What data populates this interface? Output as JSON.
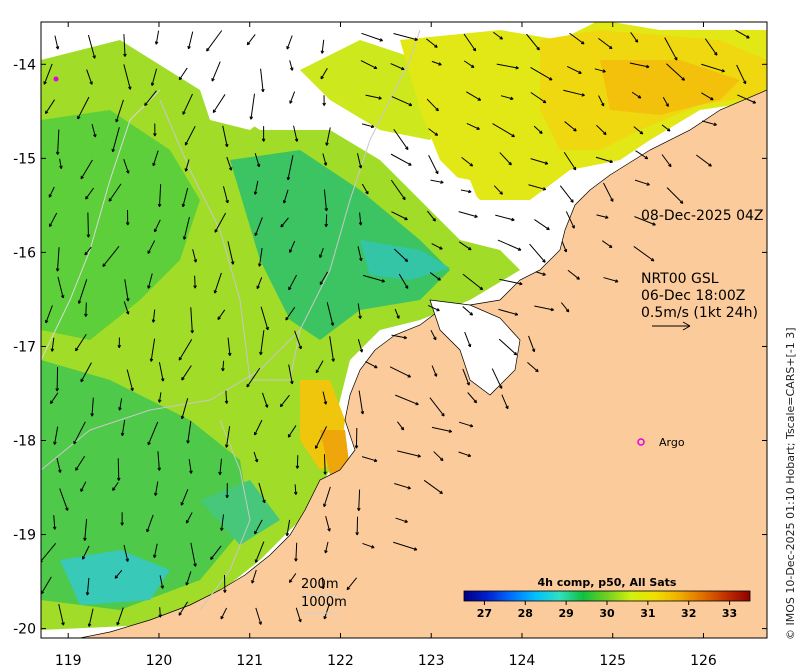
{
  "map": {
    "x_ticks": [
      "119",
      "120",
      "121",
      "122",
      "123",
      "124",
      "125",
      "126"
    ],
    "y_ticks": [
      "-14",
      "-15",
      "-16",
      "-17",
      "-18",
      "-19",
      "-20"
    ],
    "x_range": [
      118.7,
      126.7
    ],
    "y_range": [
      -20.1,
      -13.55
    ]
  },
  "annotations": {
    "time": "08-Dec-2025 04Z",
    "model_line1": "NRT00 GSL",
    "model_line2": "06-Dec 18:00Z",
    "scale_note": "0.5m/s (1kt 24h)",
    "argo_label": "Argo",
    "contour_200": "200m",
    "contour_1000": "1000m"
  },
  "colorbar": {
    "title": "4h comp, p50, All Sats",
    "ticks": [
      "27",
      "28",
      "29",
      "30",
      "31",
      "32",
      "33"
    ],
    "range": [
      26.5,
      33.5
    ],
    "colors": [
      "#000080",
      "#0022d0",
      "#0070ff",
      "#00c0ff",
      "#30e0c0",
      "#10c040",
      "#70d020",
      "#d0f010",
      "#f0e000",
      "#f0b000",
      "#e07000",
      "#c03000",
      "#900000"
    ]
  },
  "side_text": "© IMOS 10-Dec-2025 01:10 Hobart; Tscale=CARS+[-1 3]",
  "colors": {
    "land": "#fccb9b",
    "frame": "#000000",
    "argo": "#e000e0"
  }
}
